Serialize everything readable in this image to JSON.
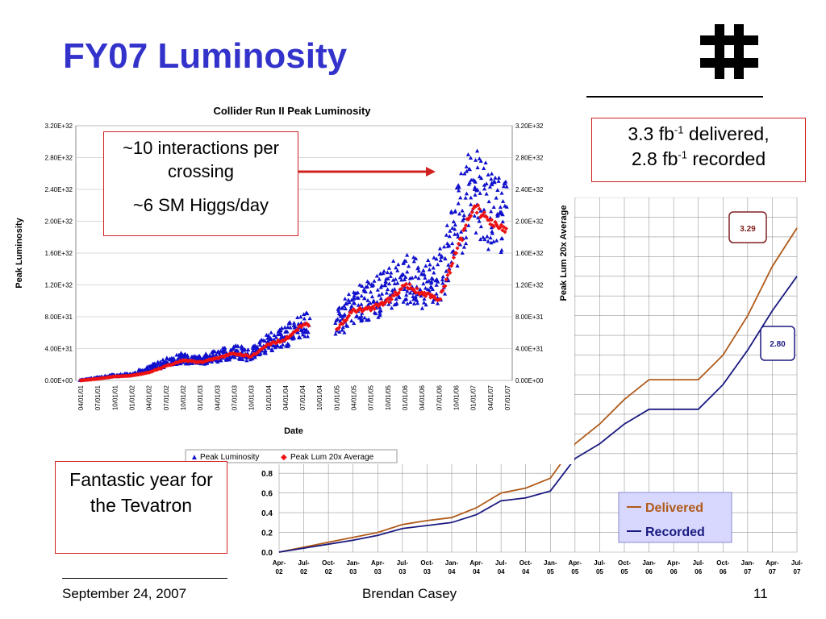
{
  "slide": {
    "title": "FY07 Luminosity",
    "footer_date": "September 24, 2007",
    "footer_author": "Brendan Casey",
    "page_number": "11",
    "logo_icon": "fermilab-logo-icon"
  },
  "callouts": {
    "top_line1": "~10 interactions per crossing",
    "top_line2": "~6 SM Higgs/day",
    "delivered_value": "3.3 fb",
    "delivered_exp": "-1",
    "delivered_word": " delivered,",
    "recorded_value": "2.8 fb",
    "recorded_exp": "-1",
    "recorded_word": " recorded",
    "fantastic": "Fantastic year for the Tevatron"
  },
  "chart_data": [
    {
      "type": "scatter",
      "title": "Collider Run II Peak Luminosity",
      "xlabel": "Date",
      "ylabel": "Peak Luminosity",
      "ylabel_right": "Peak Lum 20x Average",
      "ylim": [
        0,
        3.2e+32
      ],
      "yticks": [
        "0.00E+00",
        "4.00E+31",
        "8.00E+31",
        "1.20E+32",
        "1.60E+32",
        "2.00E+32",
        "2.40E+32",
        "2.80E+32",
        "3.20E+32"
      ],
      "xticks": [
        "04/01/01",
        "07/01/01",
        "10/01/01",
        "01/01/02",
        "04/01/02",
        "07/01/02",
        "10/01/02",
        "01/01/03",
        "04/01/03",
        "07/01/03",
        "10/01/03",
        "01/01/04",
        "04/01/04",
        "07/01/04",
        "10/01/04",
        "01/01/05",
        "04/01/05",
        "07/01/05",
        "10/01/05",
        "01/01/06",
        "04/01/06",
        "07/01/06",
        "10/01/06",
        "01/01/07",
        "04/01/07",
        "07/01/07"
      ],
      "legend": [
        "Peak Luminosity",
        "Peak Lum 20x Average"
      ],
      "legend_position": "bottom",
      "colors": {
        "peak": "#1010cc",
        "avg": "#ee1111"
      },
      "series": [
        {
          "name": "Peak Luminosity",
          "x": [
            0,
            1,
            2,
            3,
            4,
            5,
            6,
            7,
            8,
            9,
            10,
            11,
            12,
            13,
            14,
            15,
            16,
            17,
            18,
            19,
            20,
            21,
            22,
            23,
            24,
            25
          ],
          "values": [
            0.0,
            3e+30,
            6e+30,
            7e+30,
            1.5e+31,
            2.2e+31,
            2.8e+31,
            2.6e+31,
            3e+31,
            3.6e+31,
            3.2e+31,
            4.8e+31,
            5.5e+31,
            6.8e+31,
            0,
            7e+31,
            9.5e+31,
            1e+32,
            1.15e+32,
            1.3e+32,
            1.2e+32,
            1.25e+32,
            1.9e+32,
            2.4e+32,
            2.1e+32,
            2.05e+32
          ]
        },
        {
          "name": "Peak Lum 20x Average",
          "x": [
            0,
            1,
            2,
            3,
            4,
            5,
            6,
            7,
            8,
            9,
            10,
            11,
            12,
            13,
            14,
            15,
            16,
            17,
            18,
            19,
            20,
            21,
            22,
            23,
            24,
            25
          ],
          "values": [
            0.0,
            2e+30,
            5e+30,
            6e+30,
            1e+31,
            1.8e+31,
            2.5e+31,
            2.3e+31,
            2.8e+31,
            3.4e+31,
            3e+31,
            4.5e+31,
            5.2e+31,
            7e+31,
            0,
            6.5e+31,
            8.8e+31,
            9e+31,
            1e+32,
            1.2e+32,
            1.1e+32,
            1e+32,
            1.6e+32,
            2.2e+32,
            2e+32,
            1.9e+32
          ]
        }
      ]
    },
    {
      "type": "line",
      "ylabel": "",
      "ylim": [
        0,
        3.6
      ],
      "yticks": [
        "0.0",
        "0.2",
        "0.4",
        "0.6",
        "0.8"
      ],
      "categories": [
        "Apr-02",
        "Jul-02",
        "Oct-02",
        "Jan-03",
        "Apr-03",
        "Jul-03",
        "Oct-03",
        "Jan-04",
        "Apr-04",
        "Jul-04",
        "Oct-04",
        "Jan-05",
        "Apr-05",
        "Jul-05",
        "Oct-05",
        "Jan-06",
        "Apr-06",
        "Jul-06",
        "Oct-06",
        "Jan-07",
        "Apr-07",
        "Jul-07"
      ],
      "legend_position": "bottom-right",
      "colors": {
        "delivered": "#b05a1a",
        "recorded": "#1a1a80"
      },
      "series": [
        {
          "name": "Delivered",
          "values": [
            0.0,
            0.05,
            0.1,
            0.15,
            0.2,
            0.28,
            0.32,
            0.35,
            0.45,
            0.6,
            0.65,
            0.75,
            1.1,
            1.3,
            1.55,
            1.75,
            1.75,
            1.75,
            2.0,
            2.4,
            2.9,
            3.29
          ]
        },
        {
          "name": "Recorded",
          "values": [
            0.0,
            0.04,
            0.08,
            0.12,
            0.17,
            0.24,
            0.27,
            0.3,
            0.38,
            0.52,
            0.55,
            0.62,
            0.95,
            1.1,
            1.3,
            1.45,
            1.45,
            1.45,
            1.7,
            2.05,
            2.45,
            2.8
          ]
        }
      ],
      "labels": {
        "delivered_end": "3.29",
        "recorded_end": "2.80"
      }
    }
  ]
}
